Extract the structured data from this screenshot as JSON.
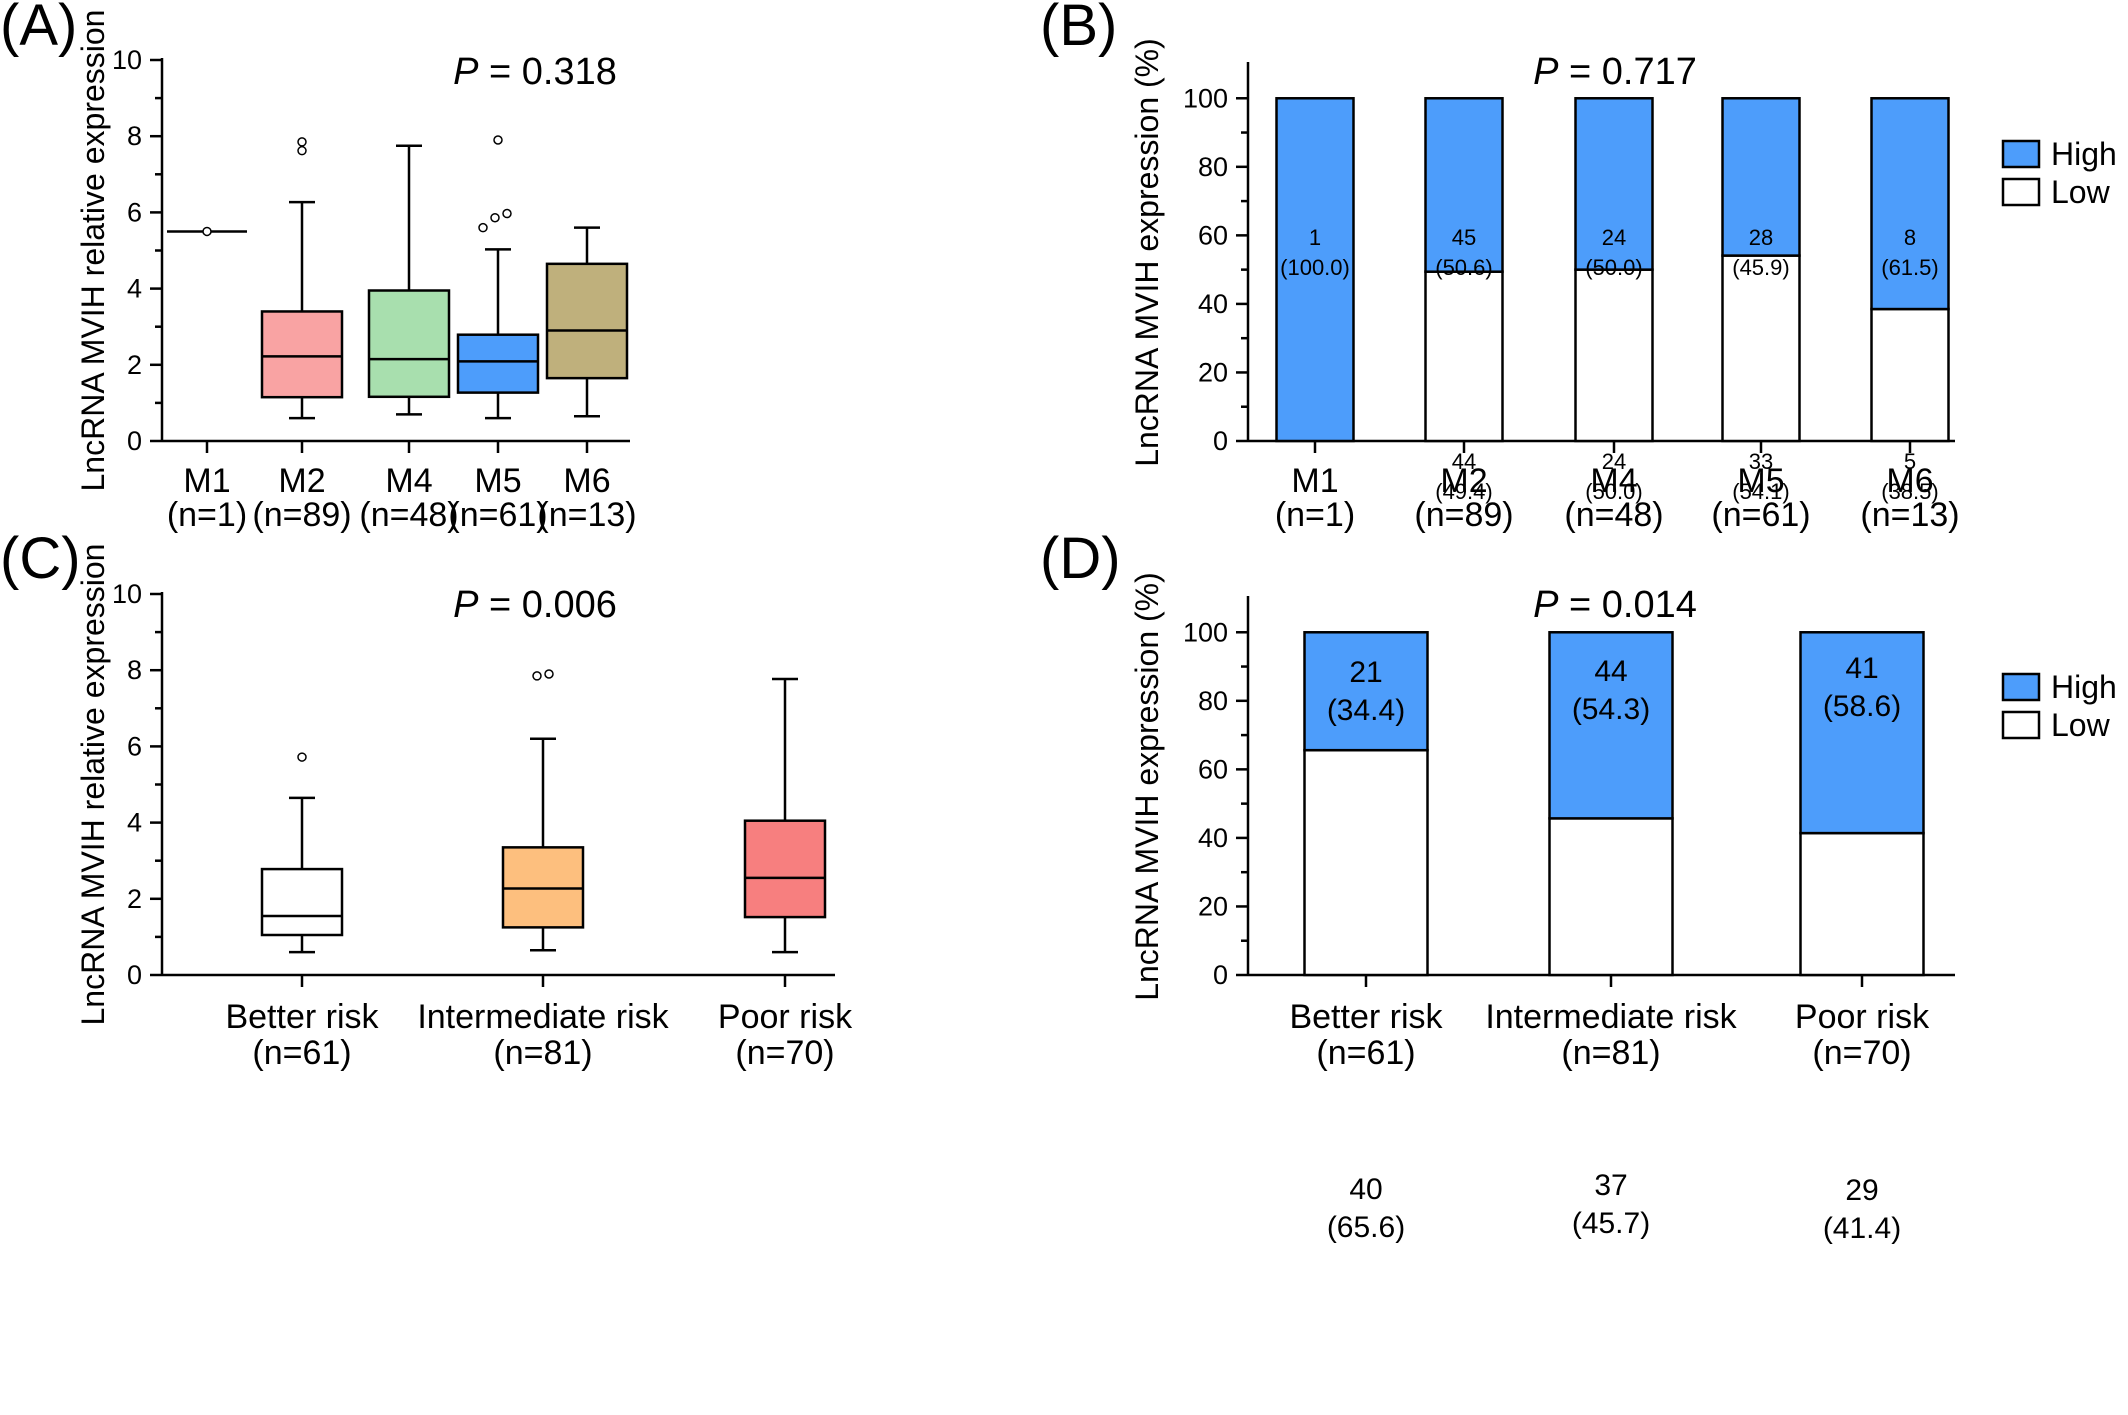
{
  "colors": {
    "high": "#4d9dfb",
    "low": "#ffffff",
    "axis": "#000000",
    "M1": "#ffffff",
    "M2": "#f9a3a3",
    "M4": "#a8dfae",
    "M5": "#4d9dfb",
    "M6": "#bfb07c",
    "better": "#ffffff",
    "intermediate": "#fdbf7e",
    "poor": "#f77f7f"
  },
  "chart_data": [
    {
      "panel": "(A)",
      "type": "box",
      "p_italic": "P",
      "p_value": " = 0.318",
      "ylabel": "LncRNA MVIH relative expression",
      "ylim": [
        0,
        10
      ],
      "yticks": [
        "0",
        "2",
        "4",
        "6",
        "8",
        "10"
      ],
      "categories": [
        "M1",
        "M2",
        "M4",
        "M5",
        "M6"
      ],
      "counts": [
        "(n=1)",
        "(n=89)",
        "(n=48)",
        "(n=61)",
        "(n=13)"
      ],
      "fill_keys": [
        "M1",
        "M2",
        "M4",
        "M5",
        "M6"
      ],
      "boxes": [
        {
          "min": 5.5,
          "q1": 5.5,
          "median": 5.5,
          "q3": 5.5,
          "max": 5.5,
          "outliers": [
            5.5
          ]
        },
        {
          "min": 0.6,
          "q1": 1.15,
          "median": 2.22,
          "q3": 3.4,
          "max": 6.27,
          "outliers": [
            7.62,
            7.85
          ]
        },
        {
          "min": 0.7,
          "q1": 1.16,
          "median": 2.15,
          "q3": 3.95,
          "max": 7.75,
          "outliers": []
        },
        {
          "min": 0.6,
          "q1": 1.27,
          "median": 2.09,
          "q3": 2.79,
          "max": 5.03,
          "outliers": [
            5.6,
            5.86,
            5.97,
            7.9
          ]
        },
        {
          "min": 0.65,
          "q1": 1.65,
          "median": 2.9,
          "q3": 4.65,
          "max": 5.6,
          "outliers": []
        }
      ]
    },
    {
      "panel": "(B)",
      "type": "stacked-bar",
      "p_italic": "P",
      "p_value": " = 0.717",
      "ylabel": "LncRNA MVIH expression (%)",
      "ylim": [
        0,
        110
      ],
      "yticks": [
        "0",
        "20",
        "40",
        "60",
        "80",
        "100"
      ],
      "categories": [
        "M1",
        "M2",
        "M4",
        "M5",
        "M6"
      ],
      "counts": [
        "(n=1)",
        "(n=89)",
        "(n=48)",
        "(n=61)",
        "(n=13)"
      ],
      "legend": [
        "High",
        "Low"
      ],
      "series": [
        {
          "name": "Low",
          "values": [
            0,
            49.4,
            50.0,
            54.1,
            38.5
          ],
          "labels": [
            "",
            "44",
            "24",
            "33",
            "5"
          ],
          "pct_labels": [
            "",
            "(49.4)",
            "(50.0)",
            "(54.1)",
            "(38.5)"
          ]
        },
        {
          "name": "High",
          "values": [
            100.0,
            50.6,
            50.0,
            45.9,
            61.5
          ],
          "labels": [
            "1",
            "45",
            "24",
            "28",
            "8"
          ],
          "pct_labels": [
            "(100.0)",
            "(50.6)",
            "(50.0)",
            "(45.9)",
            "(61.5)"
          ]
        }
      ]
    },
    {
      "panel": "(C)",
      "type": "box",
      "p_italic": "P",
      "p_value": " = 0.006",
      "ylabel": "LncRNA MVIH relative expression",
      "ylim": [
        0,
        10
      ],
      "yticks": [
        "0",
        "2",
        "4",
        "6",
        "8",
        "10"
      ],
      "categories": [
        "Better risk",
        "Intermediate risk",
        "Poor risk"
      ],
      "counts": [
        "(n=61)",
        "(n=81)",
        "(n=70)"
      ],
      "fill_keys": [
        "better",
        "intermediate",
        "poor"
      ],
      "boxes": [
        {
          "min": 0.6,
          "q1": 1.05,
          "median": 1.55,
          "q3": 2.78,
          "max": 4.65,
          "outliers": [
            5.72
          ]
        },
        {
          "min": 0.65,
          "q1": 1.25,
          "median": 2.27,
          "q3": 3.35,
          "max": 6.2,
          "outliers": [
            7.85,
            7.9
          ]
        },
        {
          "min": 0.6,
          "q1": 1.52,
          "median": 2.55,
          "q3": 4.05,
          "max": 7.77,
          "outliers": []
        }
      ]
    },
    {
      "panel": "(D)",
      "type": "stacked-bar",
      "p_italic": "P",
      "p_value": " = 0.014",
      "ylabel": "LncRNA MVIH expression (%)",
      "ylim": [
        0,
        110
      ],
      "yticks": [
        "0",
        "20",
        "40",
        "60",
        "80",
        "100"
      ],
      "categories": [
        "Better risk",
        "Intermediate risk",
        "Poor risk"
      ],
      "counts": [
        "(n=61)",
        "(n=81)",
        "(n=70)"
      ],
      "legend": [
        "High",
        "Low"
      ],
      "series": [
        {
          "name": "Low",
          "values": [
            65.6,
            45.7,
            41.4
          ],
          "labels": [
            "40",
            "37",
            "29"
          ],
          "pct_labels": [
            "(65.6)",
            "(45.7)",
            "(41.4)"
          ]
        },
        {
          "name": "High",
          "values": [
            34.4,
            54.3,
            58.6
          ],
          "labels": [
            "21",
            "44",
            "41"
          ],
          "pct_labels": [
            "(34.4)",
            "(54.3)",
            "(58.6)"
          ]
        }
      ]
    }
  ]
}
